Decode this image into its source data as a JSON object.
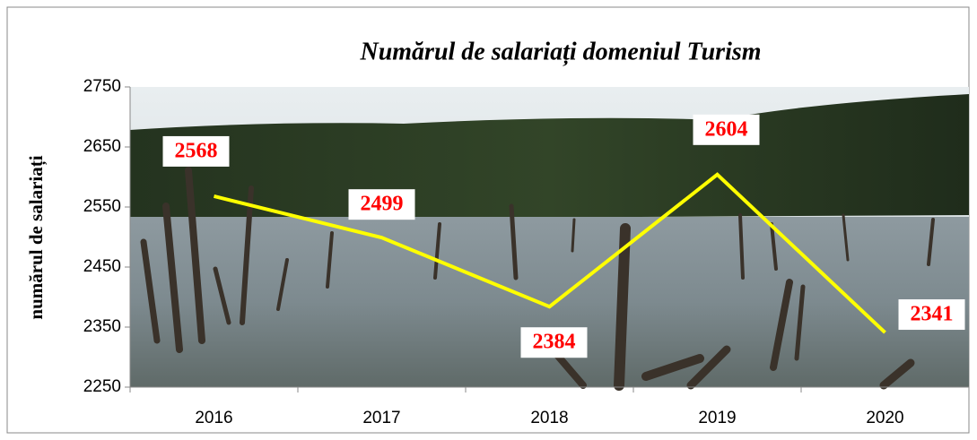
{
  "chart_data": {
    "type": "line",
    "title": "Numărul de salariați domeniul Turism",
    "y_label": "numărul de salariați",
    "categories": [
      "2016",
      "2017",
      "2018",
      "2019",
      "2020"
    ],
    "series": [
      {
        "name": "numărul de salariați",
        "color": "#ffff00",
        "values": [
          2568,
          2499,
          2384,
          2604,
          2341
        ]
      }
    ],
    "ylim": [
      2250,
      2750
    ],
    "yticks": [
      2250,
      2350,
      2450,
      2550,
      2650,
      2750
    ]
  }
}
